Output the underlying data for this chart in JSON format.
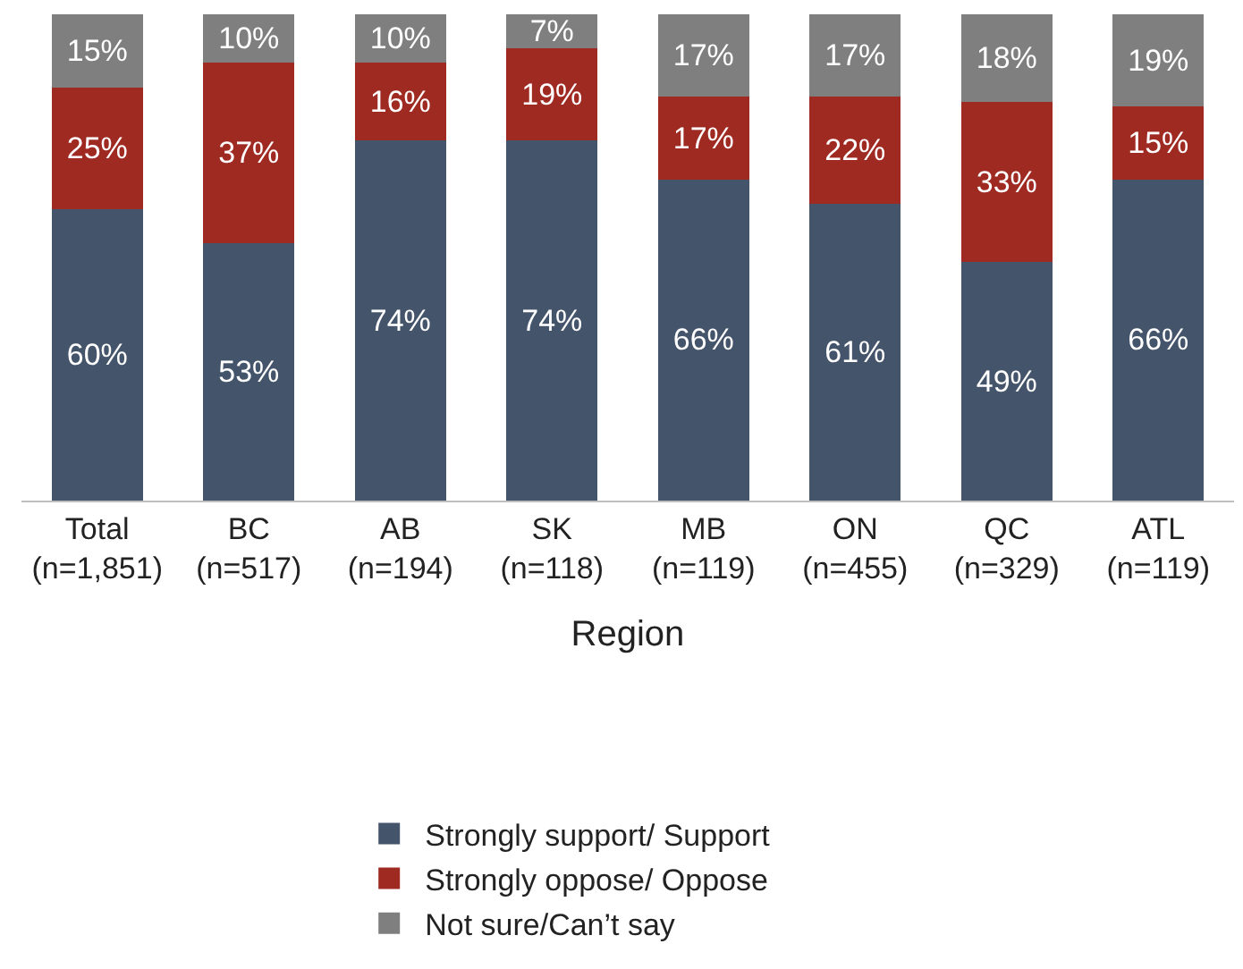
{
  "chart_data": {
    "type": "bar",
    "stacked": true,
    "xlabel": "Region",
    "categories": [
      "Total\n(n=1,851)",
      "BC\n(n=517)",
      "AB\n(n=194)",
      "SK\n(n=118)",
      "MB\n(n=119)",
      "ON\n(n=455)",
      "QC\n(n=329)",
      "ATL\n(n=119)"
    ],
    "series": [
      {
        "name": "Strongly support/ Support",
        "color": "#44546a",
        "values": [
          60,
          53,
          74,
          74,
          66,
          61,
          49,
          66
        ],
        "value_labels": [
          "60%",
          "53%",
          "74%",
          "74%",
          "66%",
          "61%",
          "49%",
          "66%"
        ]
      },
      {
        "name": "Strongly oppose/ Oppose",
        "color": "#9e2a22",
        "values": [
          25,
          37,
          16,
          19,
          17,
          22,
          33,
          15
        ],
        "value_labels": [
          "25%",
          "37%",
          "16%",
          "19%",
          "17%",
          "22%",
          "33%",
          "15%"
        ]
      },
      {
        "name": "Not sure/Can’t say",
        "color": "#7f7f7f",
        "values": [
          15,
          10,
          10,
          7,
          17,
          17,
          18,
          19
        ],
        "value_labels": [
          "15%",
          "10%",
          "10%",
          "7%",
          "17%",
          "17%",
          "18%",
          "19%"
        ]
      }
    ],
    "ylim": [
      0,
      100
    ],
    "tick_labels": "x",
    "legend": "bottom"
  }
}
